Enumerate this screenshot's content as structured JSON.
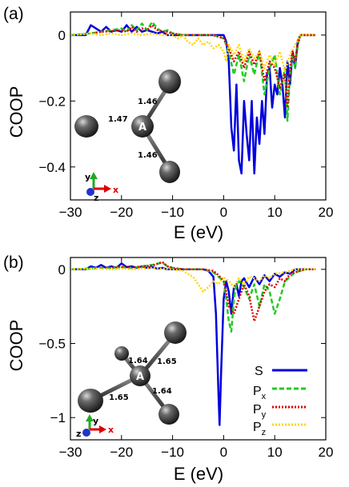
{
  "chart_data": [
    {
      "type": "line",
      "panel_label": "(a)",
      "xlabel": "E (eV)",
      "ylabel": "COOP",
      "xlim": [
        -30,
        20
      ],
      "ylim": [
        -0.5,
        0.07
      ],
      "xticks": [
        -30,
        -20,
        -10,
        0,
        10,
        20
      ],
      "xtick_labels": [
        "−30",
        "−20",
        "−10",
        "0",
        "10",
        "20"
      ],
      "yticks": [
        0,
        -0.2,
        -0.4
      ],
      "ytick_labels": [
        "0",
        "−0.2",
        "−0.4"
      ],
      "legend": "none",
      "series": [
        {
          "name": "S",
          "color": "#0000dd",
          "style": "solid",
          "x": [
            -30,
            -27,
            -26,
            -25,
            -24,
            -23,
            -22,
            -21,
            -20,
            -19,
            -18,
            -17,
            -16,
            -15,
            -14,
            -13,
            -12,
            -11,
            -10,
            -8,
            -6,
            -4,
            -2,
            0,
            0.5,
            1,
            1.5,
            2,
            2.5,
            3,
            3.5,
            4,
            4.5,
            5,
            5.5,
            6,
            6.5,
            7,
            7.5,
            8,
            8.5,
            9,
            9.5,
            10,
            10.5,
            11,
            11.5,
            12,
            12.5,
            13,
            13.5,
            14,
            14.5,
            15,
            16,
            18
          ],
          "y": [
            0,
            0,
            0.03,
            0.02,
            0.01,
            0.025,
            0.01,
            0.015,
            0.01,
            0.03,
            0.01,
            0.025,
            0.01,
            0.015,
            0.01,
            0.005,
            0.01,
            0,
            0,
            0,
            0,
            0,
            0,
            0,
            -0.02,
            -0.08,
            -0.28,
            -0.35,
            -0.15,
            -0.38,
            -0.42,
            -0.2,
            -0.3,
            -0.38,
            -0.2,
            -0.42,
            -0.25,
            -0.33,
            -0.2,
            -0.3,
            -0.12,
            -0.1,
            -0.22,
            -0.15,
            -0.18,
            -0.1,
            -0.15,
            -0.25,
            -0.08,
            -0.15,
            -0.05,
            -0.1,
            -0.02,
            0,
            0,
            0
          ]
        },
        {
          "name": "Px",
          "color": "#22cc22",
          "style": "dashed",
          "x": [
            -30,
            -26,
            -24,
            -22,
            -20,
            -19,
            -18,
            -17,
            -16,
            -15,
            -14,
            -13,
            -12,
            -11,
            -10,
            -8,
            -6,
            -4,
            -2,
            0,
            1,
            2,
            3,
            4,
            5,
            6,
            7,
            8,
            9,
            10,
            11,
            12,
            12.5,
            13,
            13.5,
            14,
            14.5,
            15,
            16,
            18
          ],
          "y": [
            0,
            0.005,
            0.01,
            0.015,
            0.02,
            0.01,
            0.03,
            0.015,
            0.035,
            0.015,
            0.04,
            0.02,
            0.01,
            0.015,
            0.005,
            0,
            0,
            0,
            0,
            -0.01,
            -0.05,
            -0.12,
            -0.06,
            -0.14,
            -0.06,
            -0.12,
            -0.05,
            -0.18,
            -0.1,
            -0.06,
            -0.18,
            -0.1,
            -0.26,
            -0.12,
            -0.06,
            -0.1,
            -0.03,
            0,
            0,
            0
          ]
        },
        {
          "name": "Py",
          "color": "#dd0000",
          "style": "dotted",
          "x": [
            -30,
            -26,
            -24,
            -22,
            -20,
            -19,
            -18,
            -17,
            -16,
            -15,
            -14,
            -13,
            -12,
            -11,
            -10,
            -8,
            -6,
            -4,
            -2,
            0,
            1,
            2,
            3,
            4,
            5,
            6,
            7,
            8,
            9,
            10,
            11,
            12,
            12.5,
            13,
            13.5,
            14,
            14.5,
            15,
            16,
            18
          ],
          "y": [
            0,
            0.005,
            0.01,
            0.012,
            0.015,
            0.01,
            0.025,
            0.01,
            0.02,
            0.015,
            0.03,
            0.015,
            0.01,
            0.01,
            0.005,
            0,
            0,
            0,
            0,
            -0.01,
            -0.04,
            -0.08,
            -0.05,
            -0.1,
            -0.05,
            -0.09,
            -0.05,
            -0.14,
            -0.08,
            -0.1,
            -0.16,
            -0.12,
            -0.22,
            -0.1,
            -0.05,
            -0.08,
            -0.03,
            0,
            0,
            0
          ]
        },
        {
          "name": "Pz",
          "color": "#ffd700",
          "style": "dotted",
          "x": [
            -30,
            -26,
            -24,
            -22,
            -20,
            -18,
            -16,
            -14,
            -12,
            -10,
            -9,
            -8,
            -7,
            -6,
            -5,
            -4,
            -3,
            -2,
            -1,
            0,
            0.5,
            1,
            2,
            3,
            4,
            5,
            6,
            7,
            8,
            9,
            10,
            11,
            12,
            13,
            14,
            15,
            16,
            18
          ],
          "y": [
            0,
            0.005,
            0,
            0.005,
            0,
            0.005,
            0,
            0.005,
            0,
            0,
            -0.01,
            0,
            -0.02,
            -0.03,
            -0.01,
            -0.03,
            -0.02,
            -0.04,
            -0.03,
            -0.05,
            -0.08,
            -0.03,
            -0.06,
            -0.03,
            -0.08,
            -0.04,
            -0.07,
            -0.05,
            -0.1,
            -0.06,
            -0.09,
            -0.05,
            -0.11,
            -0.06,
            -0.03,
            0,
            0,
            0
          ]
        }
      ]
    },
    {
      "type": "line",
      "panel_label": "(b)",
      "xlabel": "E (eV)",
      "ylabel": "COOP",
      "xlim": [
        -30,
        20
      ],
      "ylim": [
        -1.15,
        0.08
      ],
      "xticks": [
        -30,
        -20,
        -10,
        0,
        10,
        20
      ],
      "xtick_labels": [
        "−30",
        "−20",
        "−10",
        "0",
        "10",
        "20"
      ],
      "yticks": [
        0,
        -0.5,
        -1
      ],
      "ytick_labels": [
        "0",
        "−0.5",
        "−1"
      ],
      "legend": "bottom-right",
      "series": [
        {
          "name": "S",
          "color": "#0000dd",
          "style": "solid",
          "x": [
            -30,
            -27,
            -26,
            -25,
            -24,
            -23,
            -22,
            -21,
            -20,
            -19,
            -18,
            -17,
            -16,
            -15,
            -14,
            -13,
            -12,
            -11,
            -10,
            -8,
            -6,
            -4,
            -3,
            -2,
            -1.5,
            -1,
            -0.8,
            -0.5,
            0,
            0.5,
            1,
            1.5,
            2,
            2.5,
            3,
            3.5,
            4,
            5,
            6,
            7,
            8,
            9,
            10,
            11,
            12,
            13,
            14,
            16,
            18
          ],
          "y": [
            0,
            0,
            0.02,
            0.01,
            0.03,
            0.01,
            0.02,
            0.01,
            0.04,
            0.015,
            0.02,
            0.01,
            0.02,
            0.01,
            0.015,
            0.005,
            0.01,
            0,
            0,
            0,
            0,
            0,
            -0.01,
            -0.05,
            -0.3,
            -0.85,
            -1.05,
            -0.7,
            -0.2,
            -0.08,
            -0.15,
            -0.3,
            -0.12,
            -0.1,
            -0.18,
            -0.08,
            -0.06,
            -0.12,
            -0.05,
            -0.1,
            -0.04,
            -0.08,
            -0.03,
            -0.05,
            -0.02,
            -0.03,
            0,
            0,
            0
          ]
        },
        {
          "name": "Px",
          "color": "#22cc22",
          "style": "dashed",
          "x": [
            -30,
            -26,
            -24,
            -22,
            -20,
            -18,
            -16,
            -14,
            -12,
            -11,
            -10,
            -8,
            -6,
            -4,
            -2,
            -1,
            0,
            0.5,
            1,
            1.5,
            2,
            2.5,
            3,
            4,
            5,
            6,
            7,
            8,
            9,
            10,
            11,
            12,
            13,
            14,
            16,
            18
          ],
          "y": [
            0,
            0.005,
            0.01,
            0.01,
            0.015,
            0.01,
            0.02,
            0.03,
            0.045,
            0.02,
            0.01,
            0,
            0,
            0,
            -0.02,
            -0.05,
            -0.08,
            -0.2,
            -0.35,
            -0.42,
            -0.2,
            -0.1,
            -0.08,
            -0.12,
            -0.2,
            -0.1,
            -0.25,
            -0.1,
            -0.15,
            -0.3,
            -0.2,
            -0.08,
            -0.05,
            -0.02,
            0,
            0
          ]
        },
        {
          "name": "Py",
          "color": "#dd0000",
          "style": "dotted",
          "x": [
            -30,
            -26,
            -24,
            -22,
            -20,
            -18,
            -16,
            -14,
            -12,
            -11,
            -10,
            -8,
            -6,
            -4,
            -2,
            -1,
            0,
            0.5,
            1,
            2,
            3,
            4,
            5,
            6,
            7,
            8,
            9,
            10,
            11,
            12,
            13,
            14,
            16,
            18
          ],
          "y": [
            0,
            0.005,
            0.01,
            0.01,
            0.015,
            0.01,
            0.02,
            0.025,
            0.05,
            0.02,
            0.01,
            0,
            0,
            0,
            -0.01,
            -0.04,
            -0.08,
            -0.15,
            -0.25,
            -0.3,
            -0.2,
            -0.1,
            -0.18,
            -0.35,
            -0.25,
            -0.15,
            -0.1,
            -0.12,
            -0.06,
            -0.08,
            -0.03,
            -0.02,
            0,
            0
          ]
        },
        {
          "name": "Pz",
          "color": "#ffd700",
          "style": "dotted",
          "x": [
            -30,
            -26,
            -24,
            -22,
            -20,
            -18,
            -16,
            -14,
            -12,
            -10,
            -8,
            -6,
            -5,
            -4,
            -3,
            -2,
            -1,
            0,
            1,
            2,
            3,
            4,
            5,
            6,
            7,
            8,
            9,
            10,
            12,
            14,
            16,
            18
          ],
          "y": [
            0,
            0.005,
            0.005,
            0,
            0.005,
            0,
            0.005,
            0.01,
            0.005,
            0,
            -0.01,
            -0.05,
            -0.1,
            -0.15,
            -0.12,
            -0.08,
            -0.1,
            -0.05,
            -0.08,
            -0.12,
            -0.06,
            -0.1,
            -0.05,
            -0.06,
            -0.08,
            -0.04,
            -0.06,
            -0.03,
            -0.02,
            0,
            0,
            0
          ]
        }
      ]
    }
  ],
  "legend_labels": {
    "S": "S",
    "Px_base": "P",
    "Px_sub": "x",
    "Py_base": "P",
    "Py_sub": "y",
    "Pz_base": "P",
    "Pz_sub": "z"
  },
  "molecule_a": {
    "center_label": "A",
    "bonds": [
      "1.46",
      "1.47",
      "1.46"
    ],
    "axes": [
      "y",
      "z",
      "x"
    ]
  },
  "molecule_b": {
    "center_label": "A",
    "bonds": [
      "1.64",
      "1.65",
      "1.65",
      "1.64"
    ],
    "axes": [
      "y",
      "z",
      "x"
    ]
  },
  "colors": {
    "S": "#0000dd",
    "Px": "#22cc22",
    "Py": "#dd0000",
    "Pz": "#ffd700",
    "axis_x": "#dd0000",
    "axis_y": "#22aa22",
    "axis_z": "#2233cc"
  }
}
